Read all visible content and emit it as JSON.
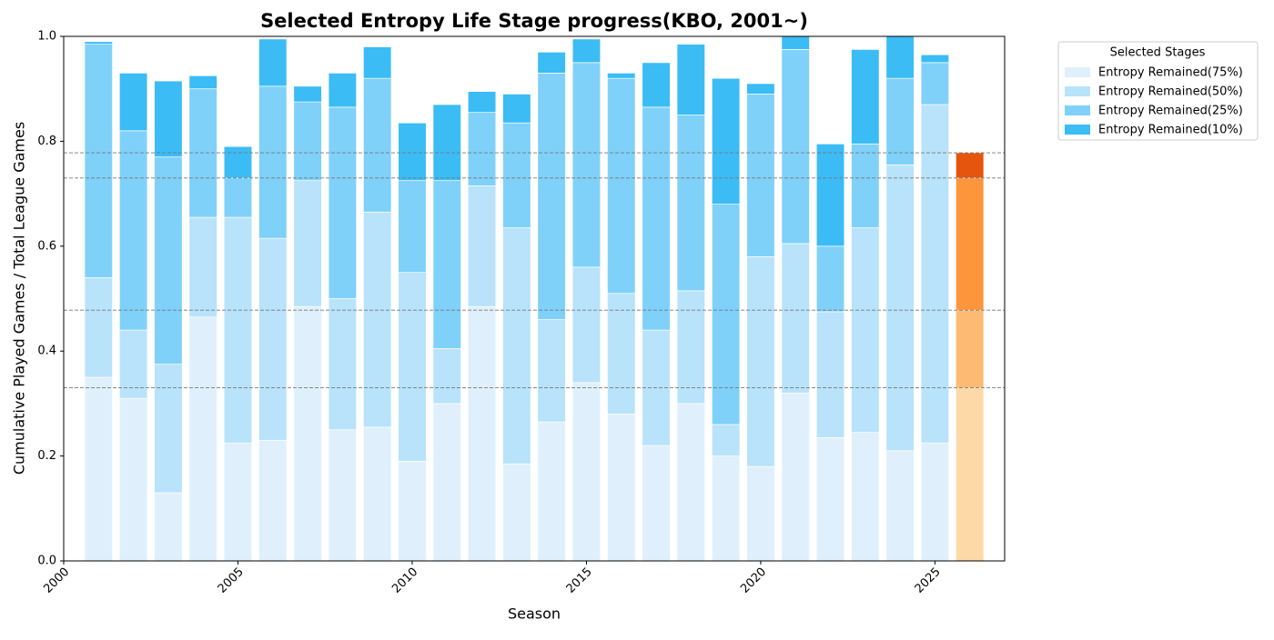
{
  "chart_data": {
    "type": "stacked_bar",
    "title": "Selected Entropy Life Stage progress(KBO, 2001~)",
    "x_label": "Season",
    "y_label": "Cumulative Played Games / Total League Games",
    "x": [
      2001,
      2002,
      2003,
      2004,
      2005,
      2006,
      2007,
      2008,
      2009,
      2010,
      2011,
      2012,
      2013,
      2014,
      2015,
      2016,
      2017,
      2018,
      2019,
      2020,
      2021,
      2022,
      2023,
      2024,
      2025,
      2026
    ],
    "series": [
      {
        "name": "Entropy Remained(75%)",
        "color": "#dff0fc",
        "highlight_color": "#fdd9a8",
        "values": [
          0.35,
          0.31,
          0.13,
          0.465,
          0.225,
          0.23,
          0.485,
          0.25,
          0.255,
          0.19,
          0.3,
          0.485,
          0.185,
          0.265,
          0.34,
          0.28,
          0.22,
          0.3,
          0.2,
          0.18,
          0.32,
          0.235,
          0.245,
          0.21,
          0.225,
          0.33
        ]
      },
      {
        "name": "Entropy Remained(50%)",
        "color": "#b8e3fa",
        "highlight_color": "#fdba72",
        "values": [
          0.19,
          0.13,
          0.245,
          0.19,
          0.43,
          0.385,
          0.24,
          0.25,
          0.41,
          0.36,
          0.105,
          0.23,
          0.45,
          0.195,
          0.22,
          0.23,
          0.22,
          0.215,
          0.06,
          0.4,
          0.285,
          0.24,
          0.39,
          0.545,
          0.645,
          0.148
        ]
      },
      {
        "name": "Entropy Remained(25%)",
        "color": "#7fd1fa",
        "highlight_color": "#fd953b",
        "values": [
          0.445,
          0.38,
          0.395,
          0.245,
          0.075,
          0.29,
          0.15,
          0.365,
          0.255,
          0.175,
          0.32,
          0.14,
          0.2,
          0.47,
          0.39,
          0.41,
          0.425,
          0.335,
          0.42,
          0.31,
          0.37,
          0.125,
          0.16,
          0.165,
          0.08,
          0.252
        ]
      },
      {
        "name": "Entropy Remained(10%)",
        "color": "#3bbcf5",
        "highlight_color": "#e6550d",
        "values": [
          0.005,
          0.11,
          0.145,
          0.025,
          0.06,
          0.09,
          0.03,
          0.065,
          0.06,
          0.11,
          0.145,
          0.04,
          0.055,
          0.04,
          0.045,
          0.01,
          0.085,
          0.135,
          0.24,
          0.02,
          0.03,
          0.195,
          0.18,
          0.085,
          0.015,
          0.048
        ]
      }
    ],
    "highlight": 2026,
    "bar_width": 0.8,
    "xlim": [
      2000,
      2027
    ],
    "xticks": [
      2000,
      2005,
      2010,
      2015,
      2020,
      2025
    ],
    "ylim": [
      0,
      1
    ],
    "yticks": [
      {
        "value": 0,
        "label": "0.0"
      },
      0.2,
      0.4,
      0.6,
      0.8,
      {
        "value": 1,
        "label": "1.0"
      }
    ],
    "legend_title": "Selected Stages",
    "legend": "outside-upper-right",
    "reference_lines": true
  }
}
